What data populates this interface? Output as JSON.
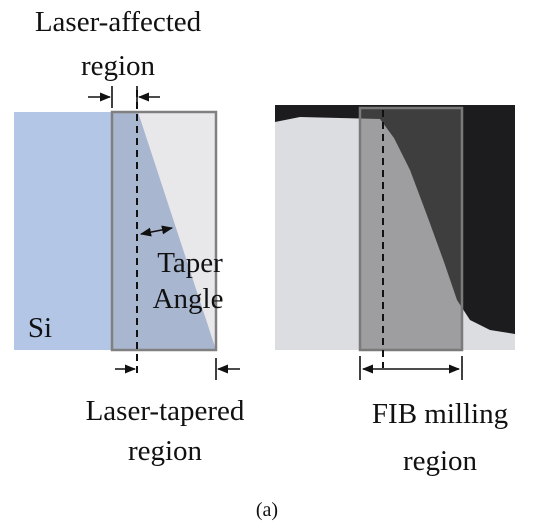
{
  "labels": {
    "laser_affected": [
      "Laser-affected",
      "region"
    ],
    "taper": [
      "Taper",
      "Angle"
    ],
    "si": "Si",
    "laser_tapered": [
      "Laser-tapered",
      "region"
    ],
    "fib": [
      "FIB milling",
      "region"
    ],
    "caption": "(a)"
  }
}
